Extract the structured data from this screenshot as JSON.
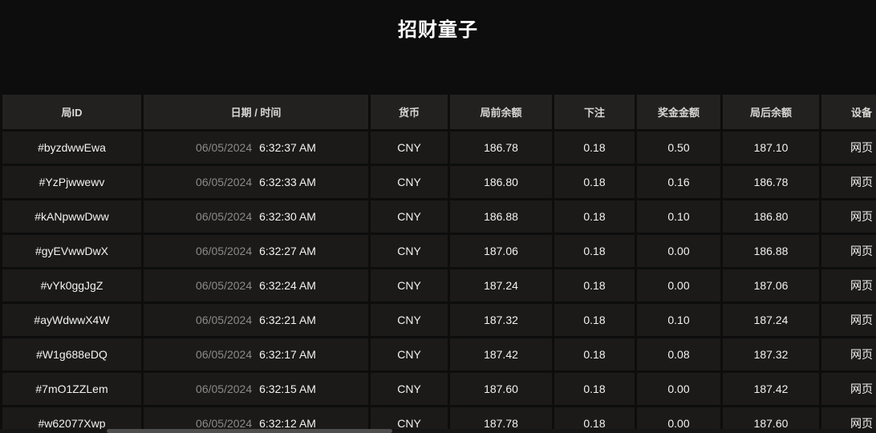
{
  "page": {
    "title": "招财童子"
  },
  "colors": {
    "page_background": "#0d0d0d",
    "header_cell_background": "#232120",
    "row_cell_background": "#1b1a19",
    "title_text": "#ffffff",
    "header_text": "#d8d6d3",
    "body_text": "#f2f2f2",
    "date_text": "#8a8a8a",
    "scrollbar_thumb": "#4f4f4f"
  },
  "table": {
    "columns": [
      {
        "key": "round_id",
        "label": "局ID"
      },
      {
        "key": "datetime",
        "label": "日期 / 时间"
      },
      {
        "key": "currency",
        "label": "货币"
      },
      {
        "key": "balance_before",
        "label": "局前余额"
      },
      {
        "key": "bet",
        "label": "下注"
      },
      {
        "key": "bonus",
        "label": "奖金金额"
      },
      {
        "key": "balance_after",
        "label": "局后余额"
      },
      {
        "key": "device",
        "label": "设备"
      }
    ],
    "rows": [
      {
        "round_id": "#byzdwwEwa",
        "date": "06/05/2024",
        "time": "6:32:37 AM",
        "currency": "CNY",
        "balance_before": "186.78",
        "bet": "0.18",
        "bonus": "0.50",
        "balance_after": "187.10",
        "device": "网页"
      },
      {
        "round_id": "#YzPjwwewv",
        "date": "06/05/2024",
        "time": "6:32:33 AM",
        "currency": "CNY",
        "balance_before": "186.80",
        "bet": "0.18",
        "bonus": "0.16",
        "balance_after": "186.78",
        "device": "网页"
      },
      {
        "round_id": "#kANpwwDww",
        "date": "06/05/2024",
        "time": "6:32:30 AM",
        "currency": "CNY",
        "balance_before": "186.88",
        "bet": "0.18",
        "bonus": "0.10",
        "balance_after": "186.80",
        "device": "网页"
      },
      {
        "round_id": "#gyEVwwDwX",
        "date": "06/05/2024",
        "time": "6:32:27 AM",
        "currency": "CNY",
        "balance_before": "187.06",
        "bet": "0.18",
        "bonus": "0.00",
        "balance_after": "186.88",
        "device": "网页"
      },
      {
        "round_id": "#vYk0ggJgZ",
        "date": "06/05/2024",
        "time": "6:32:24 AM",
        "currency": "CNY",
        "balance_before": "187.24",
        "bet": "0.18",
        "bonus": "0.00",
        "balance_after": "187.06",
        "device": "网页"
      },
      {
        "round_id": "#ayWdwwX4W",
        "date": "06/05/2024",
        "time": "6:32:21 AM",
        "currency": "CNY",
        "balance_before": "187.32",
        "bet": "0.18",
        "bonus": "0.10",
        "balance_after": "187.24",
        "device": "网页"
      },
      {
        "round_id": "#W1g688eDQ",
        "date": "06/05/2024",
        "time": "6:32:17 AM",
        "currency": "CNY",
        "balance_before": "187.42",
        "bet": "0.18",
        "bonus": "0.08",
        "balance_after": "187.32",
        "device": "网页"
      },
      {
        "round_id": "#7mO1ZZLem",
        "date": "06/05/2024",
        "time": "6:32:15 AM",
        "currency": "CNY",
        "balance_before": "187.60",
        "bet": "0.18",
        "bonus": "0.00",
        "balance_after": "187.42",
        "device": "网页"
      },
      {
        "round_id": "#w62077Xwp",
        "date": "06/05/2024",
        "time": "6:32:12 AM",
        "currency": "CNY",
        "balance_before": "187.78",
        "bet": "0.18",
        "bonus": "0.00",
        "balance_after": "187.60",
        "device": "网页"
      }
    ]
  }
}
